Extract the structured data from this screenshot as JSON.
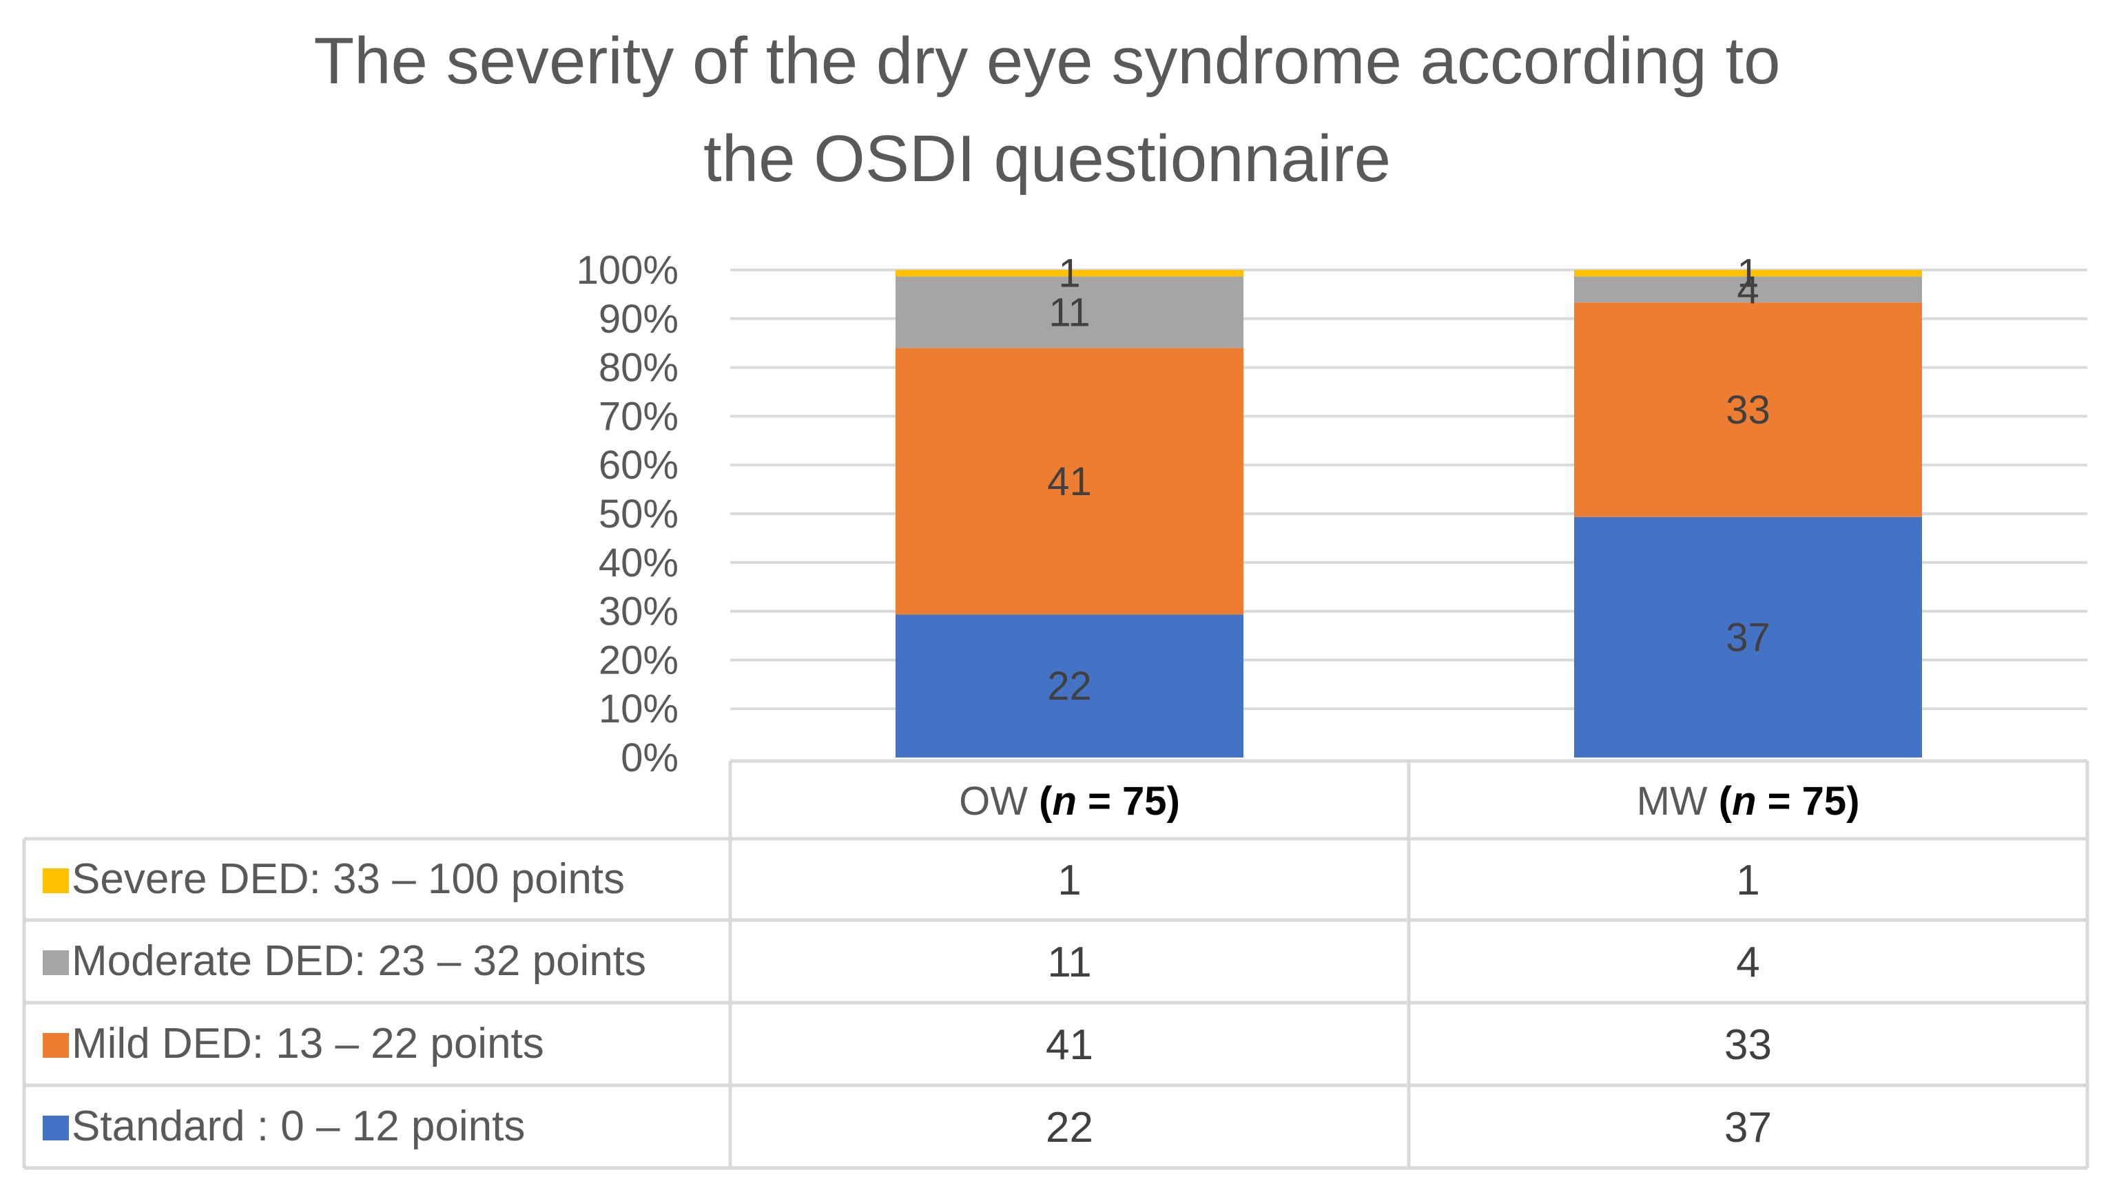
{
  "colors": {
    "standard": "#4472C4",
    "mild": "#ED7D31",
    "moderate": "#A5A5A5",
    "severe": "#FFC000",
    "grid": "#D9D9D9",
    "table_border": "#D9D9D9"
  },
  "chart_data": {
    "type": "bar",
    "stacked": "percent",
    "title": "The severity of the dry eye syndrome according to the OSDI questionnaire",
    "title_lines": [
      "The severity of the dry eye syndrome according to",
      "the OSDI questionnaire"
    ],
    "xlabel": "",
    "ylabel": "",
    "ylim": [
      0,
      100
    ],
    "y_ticks": [
      "0%",
      "10%",
      "20%",
      "30%",
      "40%",
      "50%",
      "60%",
      "70%",
      "80%",
      "90%",
      "100%"
    ],
    "categories": [
      "OW",
      "MW"
    ],
    "category_n": [
      "75",
      "75"
    ],
    "category_n_prefix": "(",
    "category_n_var": "n",
    "category_n_eq": " = ",
    "category_n_suffix": ")",
    "series": [
      {
        "name": "Standard : 0 – 12 points",
        "color_key": "standard",
        "values": [
          22,
          37
        ]
      },
      {
        "name": "Mild DED: 13 – 22 points",
        "color_key": "mild",
        "values": [
          41,
          33
        ]
      },
      {
        "name": "Moderate DED: 23 – 32 points",
        "color_key": "moderate",
        "values": [
          11,
          4
        ]
      },
      {
        "name": "Severe DED: 33 – 100 points",
        "color_key": "severe",
        "values": [
          1,
          1
        ]
      }
    ],
    "legend": "data-table-below"
  }
}
